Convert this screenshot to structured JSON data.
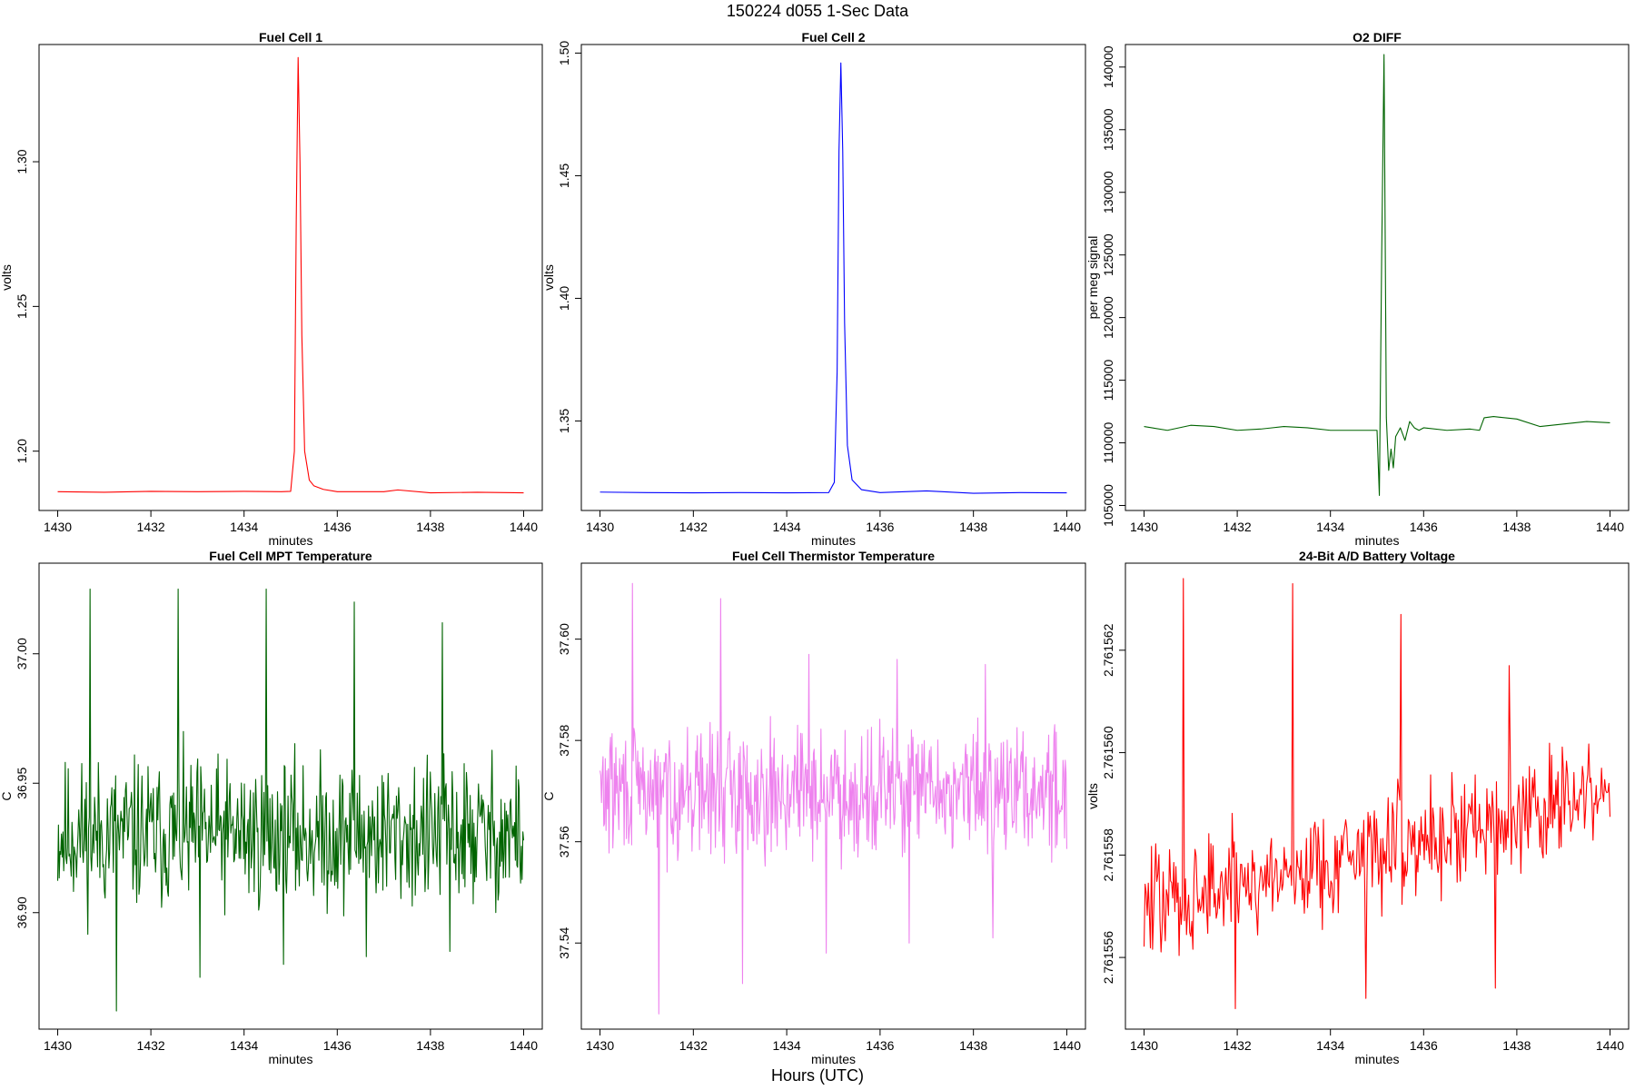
{
  "figure": {
    "title": "150224   d055   1-Sec Data",
    "footer_label": "Hours (UTC)"
  },
  "chart_data": [
    {
      "id": "fc1",
      "type": "line",
      "title": "Fuel Cell 1",
      "xlabel": "minutes",
      "ylabel": "volts",
      "color": "#ff0000",
      "xlim": [
        1429.6,
        1440.4
      ],
      "ylim": [
        1.1795,
        1.3405
      ],
      "xticks": [
        "1430",
        "1432",
        "1434",
        "1436",
        "1438",
        "1440"
      ],
      "yticks": [
        "1.20",
        "1.25",
        "1.30"
      ],
      "series": [
        {
          "x": [
            1430,
            1431,
            1432,
            1433,
            1434,
            1434.8,
            1435.0,
            1435.08,
            1435.12,
            1435.16,
            1435.2,
            1435.24,
            1435.3,
            1435.4,
            1435.5,
            1435.7,
            1436,
            1437,
            1437.3,
            1438,
            1439,
            1440
          ],
          "y": [
            1.186,
            1.1858,
            1.1861,
            1.186,
            1.1861,
            1.186,
            1.1861,
            1.2,
            1.28,
            1.336,
            1.3,
            1.24,
            1.2,
            1.19,
            1.188,
            1.1868,
            1.186,
            1.186,
            1.1866,
            1.1856,
            1.1858,
            1.1856
          ]
        }
      ]
    },
    {
      "id": "fc2",
      "type": "line",
      "title": "Fuel Cell 2",
      "xlabel": "minutes",
      "ylabel": "volts",
      "color": "#0000ff",
      "xlim": [
        1429.6,
        1440.4
      ],
      "ylim": [
        1.3135,
        1.5035
      ],
      "xticks": [
        "1430",
        "1432",
        "1434",
        "1436",
        "1438",
        "1440"
      ],
      "yticks": [
        "1.35",
        "1.40",
        "1.45",
        "1.50"
      ],
      "series": [
        {
          "x": [
            1430,
            1431,
            1432,
            1433,
            1434,
            1434.9,
            1435.02,
            1435.08,
            1435.12,
            1435.16,
            1435.2,
            1435.24,
            1435.3,
            1435.4,
            1435.6,
            1436,
            1437,
            1438,
            1439,
            1440
          ],
          "y": [
            1.321,
            1.3208,
            1.3207,
            1.3208,
            1.3207,
            1.3208,
            1.325,
            1.37,
            1.46,
            1.496,
            1.46,
            1.39,
            1.34,
            1.326,
            1.322,
            1.3208,
            1.3215,
            1.3205,
            1.3208,
            1.3207
          ]
        }
      ]
    },
    {
      "id": "o2",
      "type": "line",
      "title": "O2 DIFF",
      "xlabel": "minutes",
      "ylabel": "per meg signal",
      "color": "#006400",
      "xlim": [
        1429.6,
        1440.4
      ],
      "ylim": [
        104600,
        141800
      ],
      "xticks": [
        "1430",
        "1432",
        "1434",
        "1436",
        "1438",
        "1440"
      ],
      "yticks": [
        "105000",
        "110000",
        "115000",
        "120000",
        "125000",
        "130000",
        "135000",
        "140000"
      ],
      "series": [
        {
          "x": [
            1430,
            1430.5,
            1431,
            1431.5,
            1432,
            1432.5,
            1433,
            1433.5,
            1434,
            1434.5,
            1435,
            1435.05,
            1435.1,
            1435.15,
            1435.2,
            1435.25,
            1435.3,
            1435.35,
            1435.4,
            1435.5,
            1435.6,
            1435.7,
            1435.8,
            1435.9,
            1436,
            1436.5,
            1437,
            1437.2,
            1437.3,
            1437.5,
            1438,
            1438.5,
            1439,
            1439.5,
            1440
          ],
          "y": [
            111300,
            111000,
            111400,
            111300,
            111000,
            111100,
            111300,
            111200,
            111000,
            111000,
            111000,
            105800,
            125000,
            141000,
            112000,
            107800,
            109500,
            108000,
            110500,
            111200,
            110200,
            111700,
            111200,
            111000,
            111200,
            111000,
            111100,
            111000,
            112000,
            112100,
            111900,
            111300,
            111500,
            111700,
            111600
          ]
        }
      ]
    },
    {
      "id": "mpt",
      "type": "line",
      "title": "Fuel Cell MPT Temperature",
      "xlabel": "minutes",
      "ylabel": "C",
      "color": "#006400",
      "xlim": [
        1429.6,
        1440.4
      ],
      "ylim": [
        36.855,
        37.035
      ],
      "xticks": [
        "1430",
        "1432",
        "1434",
        "1436",
        "1438",
        "1440"
      ],
      "yticks": [
        "36.90",
        "36.95",
        "37.00"
      ],
      "noise": {
        "n": 620,
        "center": 36.93,
        "amp": 0.03,
        "seed": 11,
        "trend": 0.0,
        "spikes_hi": [
          37.025,
          37.025,
          37.025,
          37.02,
          37.012
        ],
        "spikes_lo": [
          36.862,
          36.875,
          36.88,
          36.883,
          36.885
        ]
      }
    },
    {
      "id": "thermistor",
      "type": "line",
      "title": "Fuel Cell Thermistor Temperature",
      "xlabel": "minutes",
      "ylabel": "C",
      "color": "#ee82ee",
      "xlim": [
        1429.6,
        1440.4
      ],
      "ylim": [
        37.523,
        37.615
      ],
      "xticks": [
        "1430",
        "1432",
        "1434",
        "1436",
        "1438",
        "1440"
      ],
      "yticks": [
        "37.54",
        "37.56",
        "37.58",
        "37.60"
      ],
      "noise": {
        "n": 620,
        "center": 37.57,
        "amp": 0.013,
        "seed": 29,
        "trend": 0.0,
        "spikes_hi": [
          37.611,
          37.608,
          37.597,
          37.596,
          37.595
        ],
        "spikes_lo": [
          37.526,
          37.532,
          37.538,
          37.54,
          37.541
        ]
      }
    },
    {
      "id": "battery",
      "type": "line",
      "title": "24-Bit A/D Battery Voltage",
      "xlabel": "minutes",
      "ylabel": "volts",
      "color": "#ff0000",
      "xlim": [
        1429.6,
        1440.4
      ],
      "ylim": [
        2.7615546,
        2.7615637
      ],
      "xticks": [
        "1430",
        "1432",
        "1434",
        "1436",
        "1438",
        "1440"
      ],
      "yticks": [
        "2.761556",
        "2.761558",
        "2.761560",
        "2.761562"
      ],
      "noise": {
        "n": 440,
        "center": 2.761557,
        "amp": 1.2e-06,
        "seed": 47,
        "trend": 2.2e-06,
        "spikes_hi": [
          2.7615634,
          2.7615633,
          2.7615627,
          2.7615617
        ],
        "spikes_lo": [
          2.761555,
          2.7615552,
          2.7615554
        ]
      }
    }
  ]
}
